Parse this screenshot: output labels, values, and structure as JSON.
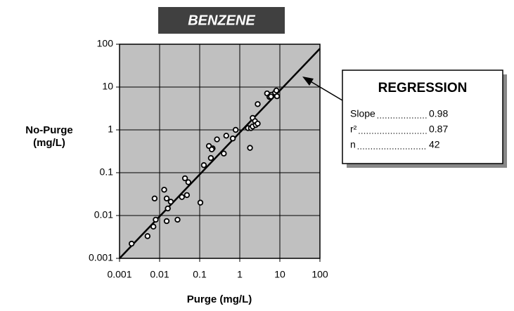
{
  "chart_data": {
    "type": "scatter",
    "title": "BENZENE",
    "xlabel": "Purge (mg/L)",
    "ylabel": [
      "No-Purge",
      "(mg/L)"
    ],
    "log_x": true,
    "log_y": true,
    "grid": true,
    "xlim": [
      0.001,
      100
    ],
    "ylim": [
      0.001,
      100
    ],
    "xticks": [
      0.001,
      0.01,
      0.1,
      1,
      10,
      100
    ],
    "yticks": [
      0.001,
      0.01,
      0.1,
      1,
      10,
      100
    ],
    "color": "#000000",
    "x": [
      0.002,
      0.005,
      0.007,
      0.008,
      0.0075,
      0.013,
      0.015,
      0.015,
      0.016,
      0.019,
      0.028,
      0.036,
      0.043,
      0.048,
      0.052,
      0.104,
      0.127,
      0.17,
      0.19,
      0.21,
      0.2,
      0.27,
      0.4,
      0.46,
      0.67,
      0.79,
      1.6,
      1.8,
      1.9,
      2.1,
      2.1,
      2.4,
      2.5,
      2.8,
      2.8,
      4.8,
      5.5,
      6.2,
      7.6,
      8.2,
      8.5,
      6.0
    ],
    "values": [
      0.0022,
      0.0033,
      0.0055,
      0.008,
      0.025,
      0.04,
      0.025,
      0.0074,
      0.0146,
      0.021,
      0.008,
      0.027,
      0.074,
      0.03,
      0.06,
      0.02,
      0.15,
      0.42,
      0.22,
      0.37,
      0.35,
      0.6,
      0.28,
      0.73,
      0.63,
      1.0,
      1.1,
      0.38,
      1.1,
      1.9,
      1.2,
      1.6,
      1.3,
      4.0,
      1.4,
      7.1,
      5.9,
      6.6,
      7.4,
      8.3,
      6.1,
      6.0
    ],
    "regression_line": {
      "x": [
        0.001,
        100
      ],
      "values": [
        0.001,
        79
      ]
    },
    "annotation": {
      "title": "REGRESSION",
      "stats": [
        {
          "label": "Slope",
          "value": 0.98
        },
        {
          "label": "r²",
          "value": 0.87
        },
        {
          "label": "n",
          "value": 42
        }
      ]
    }
  }
}
